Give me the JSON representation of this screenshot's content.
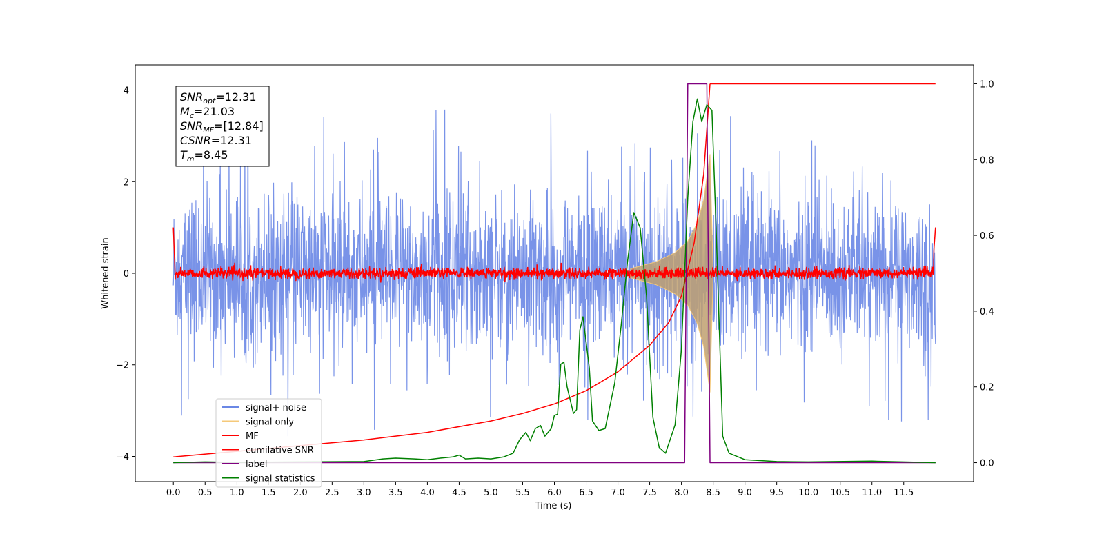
{
  "chart_data": {
    "type": "line",
    "xlabel": "Time (s)",
    "ylabel": "Whitened strain",
    "xlim": [
      -0.6,
      12.6
    ],
    "ylim": [
      -4.55,
      4.55
    ],
    "ylim_right": [
      -0.05,
      1.05
    ],
    "x_ticks": [
      "0.0",
      "0.5",
      "1.0",
      "1.5",
      "2.0",
      "2.5",
      "3.0",
      "3.5",
      "4.0",
      "4.5",
      "5.0",
      "5.5",
      "6.0",
      "6.5",
      "7.0",
      "7.5",
      "8.0",
      "8.5",
      "9.0",
      "9.5",
      "10.0",
      "10.5",
      "11.0",
      "11.5"
    ],
    "y_ticks_left": [
      "4",
      "2",
      "0",
      "−2",
      "−4"
    ],
    "y_ticks_right": [
      "1.0",
      "0.8",
      "0.6",
      "0.4",
      "0.2",
      "0.0"
    ],
    "grid": false,
    "legend_position": "lower-left",
    "annotation": [
      {
        "var": "SNR",
        "sub": "opt",
        "value": "=12.31"
      },
      {
        "var": "M",
        "sub": "c",
        "value": "=21.03"
      },
      {
        "var": "SNR",
        "sub": "MF",
        "value": "=[12.84]"
      },
      {
        "var": "CSNR",
        "sub": "",
        "value": "=12.31"
      },
      {
        "var": "T",
        "sub": "m",
        "value": "=8.45"
      }
    ],
    "series": [
      {
        "name": "signal+ noise",
        "color": "#6a87e5",
        "axis": "left",
        "description": "noise band approx ±1.5 with spikes up to 4.1 and down to -4.1 over 0-12 s"
      },
      {
        "name": "signal only",
        "color": "#f5c97a",
        "axis": "left",
        "x": [
          7.2,
          7.6,
          7.9,
          8.1,
          8.25,
          8.35,
          8.42,
          8.45,
          8.5
        ],
        "envelope": [
          0.1,
          0.25,
          0.45,
          0.7,
          1.1,
          1.6,
          2.3,
          2.6,
          0.0
        ]
      },
      {
        "name": "MF",
        "color": "#ff0000",
        "axis": "left",
        "description": "noise around 0 with amplitude about 0.15"
      },
      {
        "name": "cumilative SNR",
        "color": "#ff0000",
        "axis": "right",
        "x": [
          0.0,
          1.0,
          2.0,
          3.0,
          4.0,
          5.0,
          5.5,
          6.0,
          6.5,
          7.0,
          7.5,
          7.8,
          8.0,
          8.2,
          8.35,
          8.45
        ],
        "y": [
          0.015,
          0.03,
          0.045,
          0.06,
          0.08,
          0.11,
          0.13,
          0.155,
          0.19,
          0.24,
          0.31,
          0.37,
          0.44,
          0.58,
          0.76,
          1.0
        ]
      },
      {
        "name": "label",
        "color": "#800080",
        "axis": "right",
        "x": [
          0.0,
          8.05,
          8.1,
          8.4,
          8.45,
          12.0
        ],
        "y": [
          0.0,
          0.0,
          1.0,
          1.0,
          0.0,
          0.0
        ]
      },
      {
        "name": "signal statistics",
        "color": "#008000",
        "axis": "right",
        "x": [
          0.0,
          0.5,
          1.0,
          2.0,
          3.0,
          3.3,
          3.5,
          3.8,
          4.0,
          4.2,
          4.4,
          4.5,
          4.6,
          4.8,
          5.0,
          5.2,
          5.35,
          5.45,
          5.55,
          5.62,
          5.7,
          5.78,
          5.85,
          5.95,
          6.0,
          6.05,
          6.1,
          6.15,
          6.2,
          6.3,
          6.35,
          6.4,
          6.45,
          6.55,
          6.6,
          6.7,
          6.8,
          6.95,
          7.05,
          7.15,
          7.25,
          7.35,
          7.45,
          7.55,
          7.65,
          7.75,
          7.9,
          8.0,
          8.1,
          8.18,
          8.25,
          8.32,
          8.4,
          8.48,
          8.55,
          8.65,
          8.75,
          9.0,
          9.5,
          10.0,
          11.0,
          12.0
        ],
        "y": [
          0.0,
          0.002,
          0.001,
          0.002,
          0.003,
          0.01,
          0.012,
          0.01,
          0.008,
          0.012,
          0.015,
          0.02,
          0.01,
          0.012,
          0.01,
          0.015,
          0.025,
          0.06,
          0.08,
          0.058,
          0.09,
          0.098,
          0.07,
          0.09,
          0.125,
          0.128,
          0.26,
          0.265,
          0.2,
          0.13,
          0.14,
          0.35,
          0.385,
          0.25,
          0.11,
          0.085,
          0.09,
          0.21,
          0.36,
          0.53,
          0.66,
          0.62,
          0.44,
          0.12,
          0.04,
          0.025,
          0.1,
          0.3,
          0.7,
          0.9,
          0.96,
          0.9,
          0.945,
          0.93,
          0.6,
          0.07,
          0.025,
          0.008,
          0.003,
          0.002,
          0.004,
          0.0
        ]
      }
    ]
  }
}
